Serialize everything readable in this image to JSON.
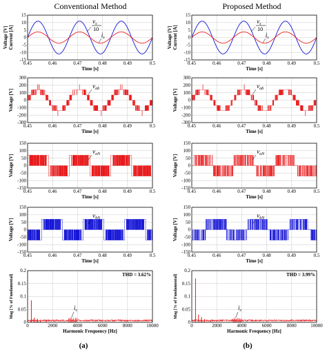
{
  "columns": [
    {
      "title": "Conventional Method",
      "sub": "(a)"
    },
    {
      "title": "Proposed Method",
      "sub": "(b)"
    }
  ],
  "colors": {
    "red": "#e8191b",
    "blue": "#1414d6",
    "axis": "#000000",
    "grid": "#c8c8c8"
  },
  "chart_data": [
    {
      "id": "a1",
      "type": "line",
      "column": 0,
      "row": 0,
      "ylabel_top": "Voltage [V]",
      "ylabel_bottom": "Current [A]",
      "xlabel": "Time [s]",
      "xlim": [
        0.45,
        0.5
      ],
      "xticks": [
        "0.45",
        "0.46",
        "0.47",
        "0.48",
        "0.49",
        "0.5"
      ],
      "ylim": [
        -15,
        15
      ],
      "yticks": [
        "-15",
        "-10",
        "-5",
        "0",
        "5",
        "10",
        "15"
      ],
      "series": [
        {
          "name": "vs/10",
          "kind": "sine",
          "amplitude": 11,
          "frequency_hz": 60,
          "phase_deg": 0,
          "color": "blue"
        },
        {
          "name": "is",
          "kind": "sine",
          "amplitude": 3.8,
          "frequency_hz": 60,
          "phase_deg": 0,
          "color": "red"
        }
      ],
      "annotations": [
        {
          "text_sym": "v",
          "text_sub": "s",
          "denominator": "10"
        },
        {
          "text_sym": "i",
          "text_sub": "s"
        }
      ]
    },
    {
      "id": "a2",
      "type": "line",
      "column": 0,
      "row": 1,
      "ylabel": "Voltage [V]",
      "xlabel": "Time [s]",
      "xlim": [
        0.45,
        0.5
      ],
      "xticks": [
        "0.45",
        "0.46",
        "0.47",
        "0.48",
        "0.49",
        "0.5"
      ],
      "ylim": [
        -300,
        300
      ],
      "yticks": [
        "-300",
        "-200",
        "-100",
        "0",
        "100",
        "200",
        "300"
      ],
      "series": [
        {
          "name": "vab",
          "kind": "multilevel",
          "levels": [
            -140,
            -70,
            0,
            70,
            140
          ],
          "frequency_hz": 60,
          "color": "red"
        }
      ],
      "annotations": [
        {
          "text_sym": "v",
          "text_sub": "ab"
        }
      ]
    },
    {
      "id": "a3",
      "type": "line",
      "column": 0,
      "row": 2,
      "ylabel": "Voltage [V]",
      "xlabel": "Time [s]",
      "xlim": [
        0.45,
        0.5
      ],
      "xticks": [
        "0.45",
        "0.46",
        "0.47",
        "0.48",
        "0.49",
        "0.5"
      ],
      "ylim": [
        -150,
        150
      ],
      "yticks": [
        "-150",
        "-100",
        "-50",
        "0",
        "50",
        "100",
        "150"
      ],
      "series": [
        {
          "name": "vaN",
          "kind": "twolevel",
          "levels": [
            -70,
            0,
            70
          ],
          "frequency_hz": 60,
          "color": "red"
        }
      ],
      "annotations": [
        {
          "text_sym": "v",
          "text_sub": "aN"
        }
      ]
    },
    {
      "id": "a4",
      "type": "line",
      "column": 0,
      "row": 3,
      "ylabel": "Voltage [V]",
      "xlabel": "Time [s]",
      "xlim": [
        0.45,
        0.5
      ],
      "xticks": [
        "0.45",
        "0.46",
        "0.47",
        "0.48",
        "0.49",
        "0.5"
      ],
      "ylim": [
        -150,
        150
      ],
      "yticks": [
        "-150",
        "-100",
        "-50",
        "0",
        "50",
        "100",
        "150"
      ],
      "series": [
        {
          "name": "vbN",
          "kind": "twolevel",
          "levels": [
            -70,
            0,
            70
          ],
          "frequency_hz": 60,
          "phase_deg": 120,
          "color": "blue"
        }
      ],
      "annotations": [
        {
          "text_sym": "v",
          "text_sub": "bN"
        }
      ]
    },
    {
      "id": "a5",
      "type": "bar",
      "column": 0,
      "row": 4,
      "ylabel": "Mag [% of Fundamental]",
      "xlabel": "Harmonic Frequency [Hz]",
      "xlim": [
        0,
        10000
      ],
      "xticks": [
        "0",
        "2000",
        "4000",
        "6000",
        "8000",
        "10000"
      ],
      "ylim": [
        0,
        0.2
      ],
      "yticks": [
        "0",
        "0.05",
        "0.1",
        "0.15",
        "0.2"
      ],
      "thd": "THD = 3.62%",
      "peaks": [
        [
          300,
          0.085
        ],
        [
          540,
          0.018
        ],
        [
          780,
          0.014
        ],
        [
          1020,
          0.01
        ],
        [
          1500,
          0.007
        ]
      ],
      "annotations": [
        {
          "text_sym": "i",
          "text_sub": "s"
        }
      ]
    },
    {
      "id": "b1",
      "type": "line",
      "column": 1,
      "row": 0,
      "ylabel_top": "Voltage [V]",
      "ylabel_bottom": "Current [A]",
      "xlabel": "Time [s]",
      "xlim": [
        0.45,
        0.5
      ],
      "xticks": [
        "0.45",
        "0.46",
        "0.47",
        "0.48",
        "0.49",
        "0.5"
      ],
      "ylim": [
        -15,
        15
      ],
      "yticks": [
        "-15",
        "-10",
        "-5",
        "0",
        "5",
        "10",
        "15"
      ],
      "series": [
        {
          "name": "vs/10",
          "kind": "sine",
          "amplitude": 11,
          "frequency_hz": 60,
          "phase_deg": 0,
          "color": "blue"
        },
        {
          "name": "is",
          "kind": "sine",
          "amplitude": 3.8,
          "frequency_hz": 60,
          "phase_deg": 0,
          "color": "red"
        }
      ],
      "annotations": [
        {
          "text_sym": "v",
          "text_sub": "s",
          "denominator": "10"
        },
        {
          "text_sym": "i",
          "text_sub": "s"
        }
      ]
    },
    {
      "id": "b2",
      "type": "line",
      "column": 1,
      "row": 1,
      "ylabel": "Voltage [V]",
      "xlabel": "Time [s]",
      "xlim": [
        0.45,
        0.5
      ],
      "xticks": [
        "0.45",
        "0.46",
        "0.47",
        "0.48",
        "0.49",
        "0.5"
      ],
      "ylim": [
        -300,
        300
      ],
      "yticks": [
        "-300",
        "-200",
        "-100",
        "0",
        "100",
        "200",
        "300"
      ],
      "series": [
        {
          "name": "vab",
          "kind": "multilevel",
          "levels": [
            -140,
            -70,
            0,
            70,
            140
          ],
          "frequency_hz": 60,
          "color": "red"
        }
      ],
      "annotations": [
        {
          "text_sym": "v",
          "text_sub": "ab"
        }
      ]
    },
    {
      "id": "b3",
      "type": "line",
      "column": 1,
      "row": 2,
      "ylabel": "Voltage [V]",
      "xlabel": "Time [s]",
      "xlim": [
        0.45,
        0.5
      ],
      "xticks": [
        "0.45",
        "0.46",
        "0.47",
        "0.48",
        "0.49",
        "0.5"
      ],
      "ylim": [
        -150,
        150
      ],
      "yticks": [
        "-150",
        "-100",
        "-50",
        "0",
        "50",
        "100",
        "150"
      ],
      "series": [
        {
          "name": "vaN",
          "kind": "threelevel",
          "levels": [
            -70,
            0,
            70
          ],
          "frequency_hz": 60,
          "color": "red"
        }
      ],
      "annotations": [
        {
          "text_sym": "v",
          "text_sub": "aN"
        }
      ]
    },
    {
      "id": "b4",
      "type": "line",
      "column": 1,
      "row": 3,
      "ylabel": "Voltage [V]",
      "xlabel": "Time [s]",
      "xlim": [
        0.45,
        0.5
      ],
      "xticks": [
        "0.45",
        "0.46",
        "0.47",
        "0.48",
        "0.49",
        "0.5"
      ],
      "ylim": [
        -150,
        150
      ],
      "yticks": [
        "-150",
        "-100",
        "-50",
        "0",
        "50",
        "100",
        "150"
      ],
      "series": [
        {
          "name": "vbN",
          "kind": "threelevel",
          "levels": [
            -70,
            0,
            70
          ],
          "frequency_hz": 60,
          "phase_deg": 120,
          "color": "blue"
        }
      ],
      "annotations": [
        {
          "text_sym": "v",
          "text_sub": "bN"
        }
      ]
    },
    {
      "id": "b5",
      "type": "bar",
      "column": 1,
      "row": 4,
      "ylabel": "Mag [% of Fundamental]",
      "xlabel": "Harmonic Frequency [Hz]",
      "xlim": [
        0,
        10000
      ],
      "xticks": [
        "0",
        "2000",
        "4000",
        "6000",
        "8000",
        "10000"
      ],
      "ylim": [
        0,
        0.2
      ],
      "yticks": [
        "0",
        "0.05",
        "0.1",
        "0.15",
        "0.2"
      ],
      "thd": "THD = 3.99%",
      "peaks": [
        [
          300,
          0.17
        ],
        [
          540,
          0.03
        ],
        [
          780,
          0.02
        ],
        [
          1020,
          0.012
        ],
        [
          1500,
          0.008
        ]
      ],
      "annotations": [
        {
          "text_sym": "i",
          "text_sub": "s"
        }
      ]
    }
  ]
}
